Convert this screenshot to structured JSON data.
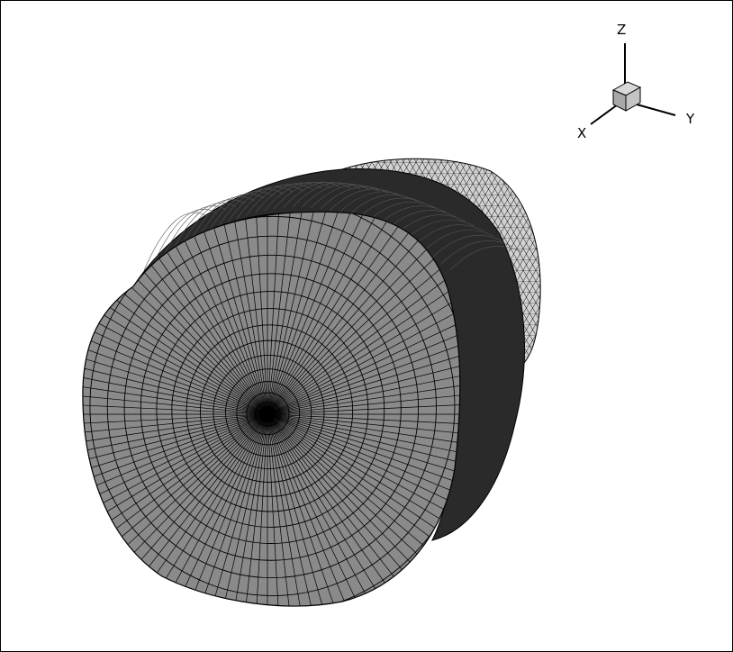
{
  "triad": {
    "x_label": "X",
    "y_label": "Y",
    "z_label": "Z",
    "cube_color": "#b0b0b0"
  },
  "mesh": {
    "face_fill": "#8a8a8a",
    "line_color": "#000000",
    "back_fill": "#d2d2d2",
    "rings": 14,
    "spokes": 120
  }
}
